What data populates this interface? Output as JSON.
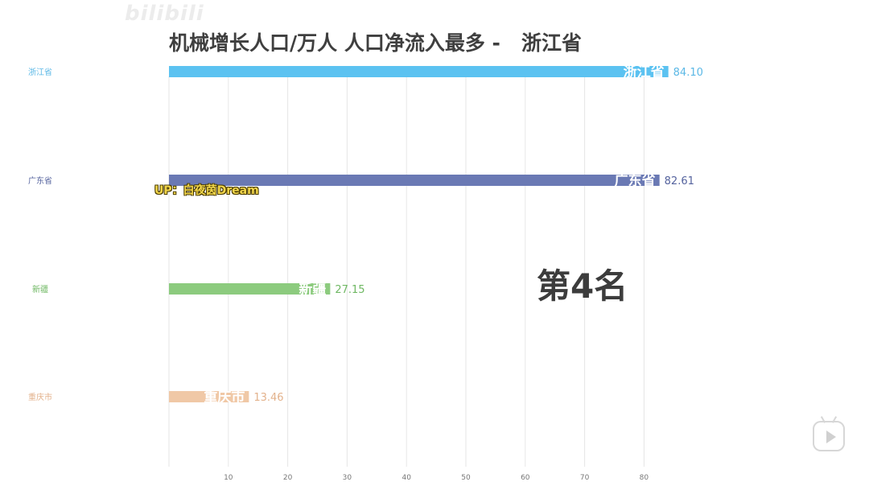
{
  "watermark": "bilibili",
  "title": "机械增长人口/万人 人口净流入最多 -   浙江省",
  "rank_label": "第4名",
  "uploader_caption": "UP：白夜茵Dream",
  "chart_data": {
    "type": "bar",
    "orientation": "horizontal",
    "title": "机械增长人口/万人 人口净流入最多 -   浙江省",
    "categories": [
      "浙江省",
      "广东省",
      "新疆",
      "重庆市"
    ],
    "values": [
      84.1,
      82.61,
      27.15,
      13.46
    ],
    "value_labels": [
      "84.10",
      "82.61",
      "27.15",
      "13.46"
    ],
    "colors": [
      "#5bc2f1",
      "#6a79b4",
      "#8ccb7e",
      "#f0c8a6"
    ],
    "label_colors": [
      "#5bb8e6",
      "#55639e",
      "#6fb863",
      "#e3b28c"
    ],
    "xticks": [
      10,
      20,
      30,
      40,
      50,
      60,
      70,
      80
    ],
    "xlim": [
      0,
      85
    ],
    "grid": "vertical",
    "xlabel": "",
    "ylabel": ""
  }
}
